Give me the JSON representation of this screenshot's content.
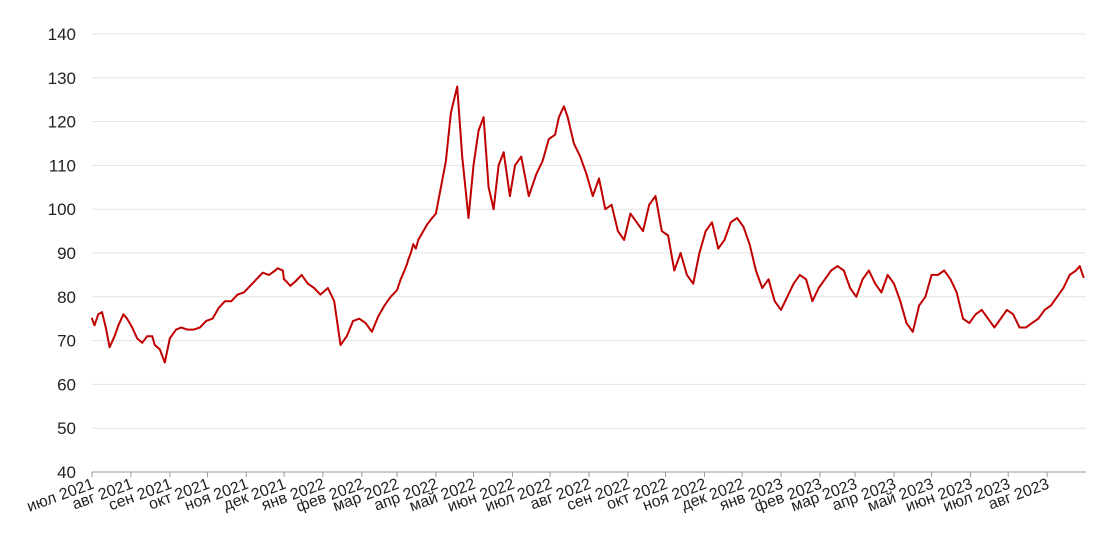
{
  "chart_data": {
    "type": "line",
    "title": "",
    "xlabel": "",
    "ylabel": "",
    "ylim": [
      40,
      140
    ],
    "yticks": [
      40,
      50,
      60,
      70,
      80,
      90,
      100,
      110,
      120,
      130,
      140
    ],
    "grid": "horizontal",
    "legend": "none",
    "line_color": "#c00000",
    "xticks": [
      "июл 2021",
      "авг 2021",
      "сен 2021",
      "окт 2021",
      "ноя 2021",
      "дек 2021",
      "янв 2022",
      "фев 2022",
      "мар 2022",
      "апр 2022",
      "май 2022",
      "июн 2022",
      "июл 2022",
      "авг 2022",
      "сен 2022",
      "окт 2022",
      "ноя 2022",
      "дек 2022",
      "янв 2023",
      "фев 2023",
      "мар 2023",
      "апр 2023",
      "май 2023",
      "июн 2023",
      "июл 2023",
      "авг 2023"
    ],
    "series": [
      {
        "x": [
          "2021-07-01",
          "2021-07-03",
          "2021-07-06",
          "2021-07-09",
          "2021-07-12",
          "2021-07-15",
          "2021-07-19",
          "2021-07-22",
          "2021-07-26",
          "2021-07-29",
          "2021-08-02",
          "2021-08-06",
          "2021-08-10",
          "2021-08-14",
          "2021-08-18",
          "2021-08-20",
          "2021-08-24",
          "2021-08-28",
          "2021-09-01",
          "2021-09-06",
          "2021-09-10",
          "2021-09-15",
          "2021-09-20",
          "2021-09-25",
          "2021-09-30",
          "2021-10-05",
          "2021-10-10",
          "2021-10-15",
          "2021-10-20",
          "2021-10-25",
          "2021-10-30",
          "2021-11-04",
          "2021-11-09",
          "2021-11-14",
          "2021-11-19",
          "2021-11-24",
          "2021-11-26",
          "2021-11-30",
          "2021-12-01",
          "2021-12-03",
          "2021-12-06",
          "2021-12-10",
          "2021-12-15",
          "2021-12-20",
          "2021-12-25",
          "2021-12-30",
          "2022-01-05",
          "2022-01-10",
          "2022-01-15",
          "2022-01-20",
          "2022-01-25",
          "2022-01-30",
          "2022-02-04",
          "2022-02-09",
          "2022-02-14",
          "2022-02-19",
          "2022-02-24",
          "2022-03-01",
          "2022-03-04",
          "2022-03-07",
          "2022-03-09",
          "2022-03-10",
          "2022-03-12",
          "2022-03-14",
          "2022-03-16",
          "2022-03-18",
          "2022-03-22",
          "2022-03-25",
          "2022-03-29",
          "2022-04-01",
          "2022-04-05",
          "2022-04-09",
          "2022-04-13",
          "2022-04-18",
          "2022-04-22",
          "2022-04-27",
          "2022-05-01",
          "2022-05-05",
          "2022-05-09",
          "2022-05-13",
          "2022-05-17",
          "2022-05-21",
          "2022-05-25",
          "2022-05-30",
          "2022-06-03",
          "2022-06-08",
          "2022-06-14",
          "2022-06-20",
          "2022-06-25",
          "2022-06-30",
          "2022-07-05",
          "2022-07-08",
          "2022-07-12",
          "2022-07-15",
          "2022-07-20",
          "2022-07-25",
          "2022-07-30",
          "2022-08-04",
          "2022-08-09",
          "2022-08-14",
          "2022-08-19",
          "2022-08-24",
          "2022-08-29",
          "2022-09-03",
          "2022-09-08",
          "2022-09-13",
          "2022-09-18",
          "2022-09-23",
          "2022-09-28",
          "2022-10-03",
          "2022-10-08",
          "2022-10-13",
          "2022-10-18",
          "2022-10-23",
          "2022-10-28",
          "2022-11-02",
          "2022-11-07",
          "2022-11-12",
          "2022-11-17",
          "2022-11-22",
          "2022-11-27",
          "2022-12-02",
          "2022-12-07",
          "2022-12-12",
          "2022-12-17",
          "2022-12-22",
          "2022-12-27",
          "2023-01-01",
          "2023-01-06",
          "2023-01-11",
          "2023-01-16",
          "2023-01-21",
          "2023-01-26",
          "2023-01-31",
          "2023-02-05",
          "2023-02-10",
          "2023-02-15",
          "2023-02-20",
          "2023-02-25",
          "2023-03-02",
          "2023-03-07",
          "2023-03-12",
          "2023-03-17",
          "2023-03-22",
          "2023-03-27",
          "2023-04-01",
          "2023-04-06",
          "2023-04-11",
          "2023-04-16",
          "2023-04-21",
          "2023-04-26",
          "2023-05-01",
          "2023-05-06",
          "2023-05-11",
          "2023-05-16",
          "2023-05-21",
          "2023-05-26",
          "2023-05-31",
          "2023-06-05",
          "2023-06-10",
          "2023-06-15",
          "2023-06-20",
          "2023-06-25",
          "2023-06-30",
          "2023-07-05",
          "2023-07-10",
          "2023-07-15",
          "2023-07-20",
          "2023-07-25",
          "2023-07-30",
          "2023-08-04",
          "2023-08-09",
          "2023-08-14",
          "2023-08-19",
          "2023-08-24",
          "2023-08-27",
          "2023-08-30"
        ],
        "values": [
          75,
          73.5,
          76,
          76.5,
          73,
          68.5,
          71,
          73.5,
          76,
          75,
          73,
          70.5,
          69.5,
          71,
          71,
          69,
          68,
          65,
          70.5,
          72.5,
          73,
          72.5,
          72.5,
          73,
          74.5,
          75,
          77.5,
          79,
          79,
          80.5,
          81,
          82.5,
          84,
          85.5,
          85,
          86,
          86.5,
          86,
          84,
          83.5,
          82.5,
          83.5,
          85,
          83,
          82,
          80.5,
          82,
          79,
          69,
          71,
          74.5,
          75,
          74,
          72,
          75.5,
          78,
          80,
          81.5,
          84,
          86,
          87.5,
          88.5,
          90,
          92,
          91,
          93,
          95,
          96.5,
          98,
          99,
          105,
          111,
          122,
          128,
          112,
          98,
          110,
          118,
          121,
          105,
          100,
          110,
          113,
          103,
          110,
          112,
          103,
          108,
          111,
          116,
          117,
          121,
          123.5,
          121,
          115,
          112,
          108,
          103,
          107,
          100,
          101,
          95,
          93,
          99,
          97,
          95,
          101,
          103,
          95,
          94,
          86,
          90,
          85,
          83,
          90,
          95,
          97,
          91,
          93,
          97,
          98,
          96,
          92,
          86,
          82,
          84,
          79,
          77,
          80,
          83,
          85,
          84,
          79,
          82,
          84,
          86,
          87,
          86,
          82,
          80,
          84,
          86,
          83,
          81,
          85,
          83,
          79,
          74,
          72,
          78,
          80,
          85,
          85,
          86,
          84,
          81,
          75,
          74,
          76,
          77,
          75,
          73,
          75,
          77,
          76,
          73,
          73,
          74,
          75,
          77,
          78,
          80,
          82,
          85,
          86,
          87,
          84.5
        ]
      }
    ]
  }
}
